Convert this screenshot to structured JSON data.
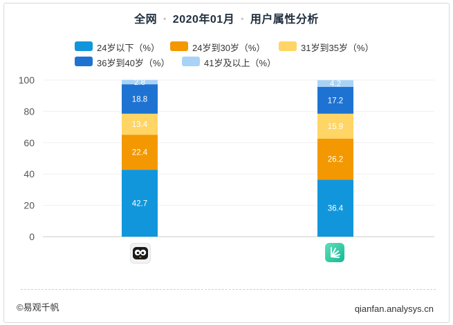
{
  "header": {
    "scope": "全网",
    "period": "2020年01月",
    "metric": "用户属性分析",
    "separator": "•"
  },
  "footer": {
    "source": "©易观千帆",
    "site": "qianfan.analysys.cn"
  },
  "colors": {
    "age_24_below": "#1296db",
    "age_24_30": "#f39800",
    "age_31_35": "#ffd566",
    "age_36_40": "#1e73d2",
    "age_41_above": "#a9d3f6"
  },
  "apps": [
    {
      "icon": "owl-app-icon"
    },
    {
      "icon": "sunburst-app-icon"
    }
  ],
  "chart_data": {
    "type": "bar",
    "stacked": true,
    "categories": [
      "",
      ""
    ],
    "series": [
      {
        "name": "24岁以下（%）",
        "values": [
          42.7,
          36.4
        ],
        "color": "#1296db"
      },
      {
        "name": "24岁到30岁（%）",
        "values": [
          22.4,
          26.2
        ],
        "color": "#f39800"
      },
      {
        "name": "31岁到35岁（%）",
        "values": [
          13.4,
          15.9
        ],
        "color": "#ffd566"
      },
      {
        "name": "36岁到40岁（%）",
        "values": [
          18.8,
          17.2
        ],
        "color": "#1e73d2"
      },
      {
        "name": "41岁及以上（%）",
        "values": [
          2.8,
          4.2
        ],
        "color": "#a9d3f6"
      }
    ],
    "ylim": [
      0,
      100
    ],
    "yticks": [
      0,
      20,
      40,
      60,
      80,
      100
    ],
    "grid": true,
    "legend_position": "top"
  }
}
